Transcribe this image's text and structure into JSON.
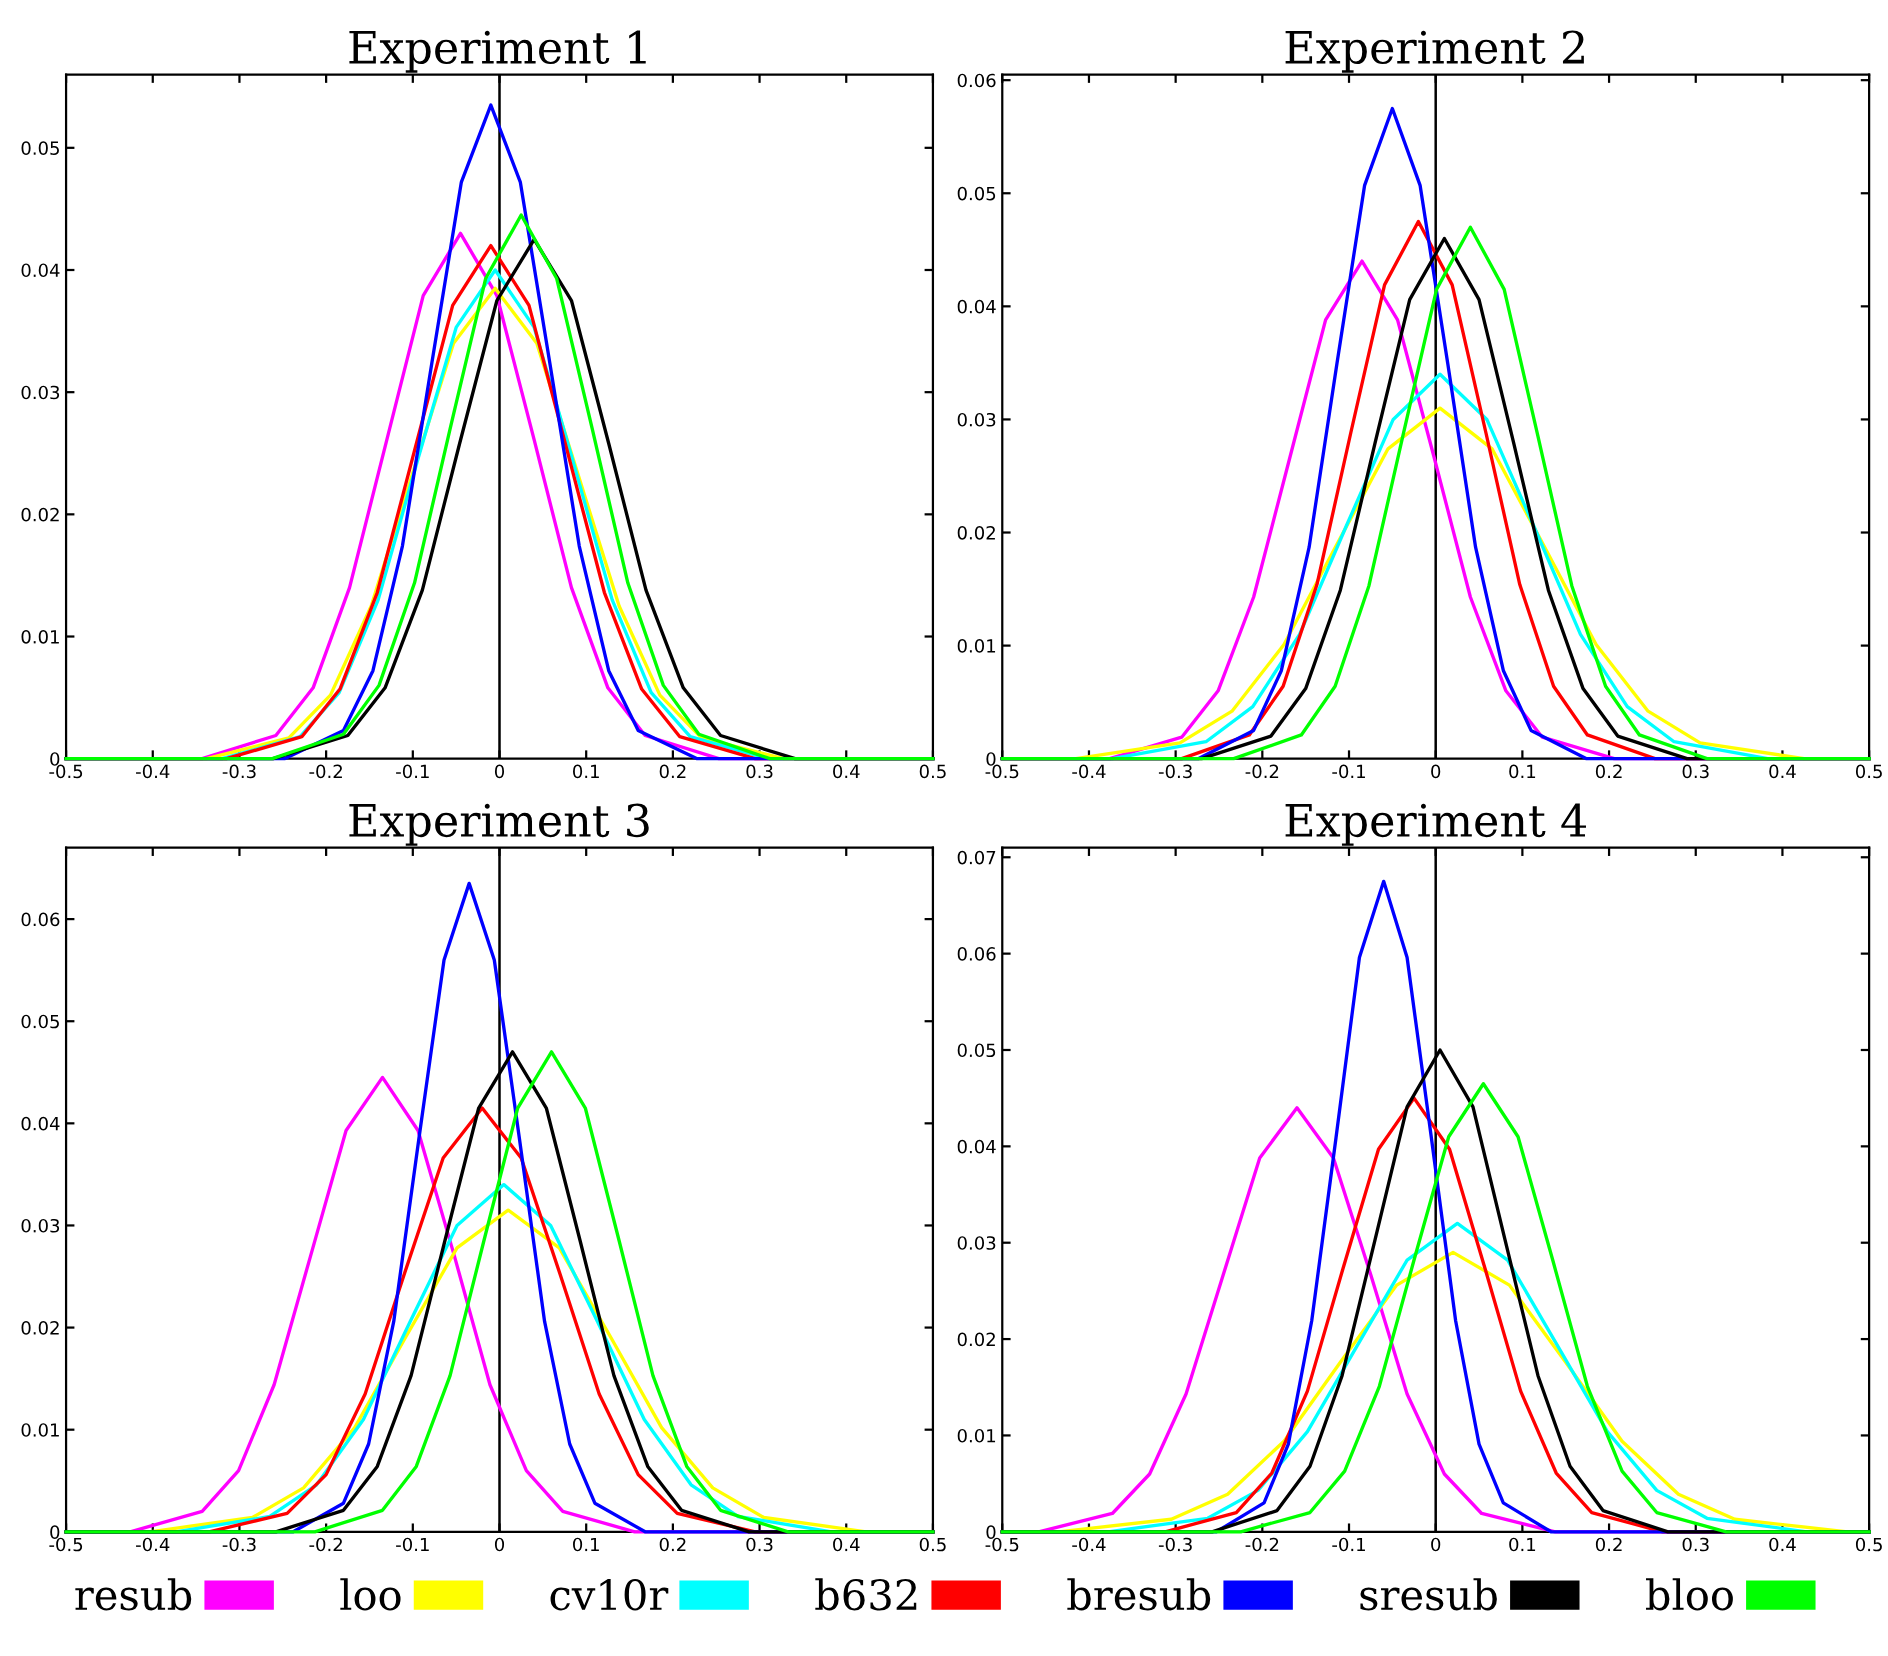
{
  "chart_data": [
    {
      "type": "line",
      "title": "Experiment 1",
      "xlim": [
        -0.5,
        0.5
      ],
      "xticks": [
        -0.5,
        -0.4,
        -0.3,
        -0.2,
        -0.1,
        0,
        0.1,
        0.2,
        0.3,
        0.4,
        0.5
      ],
      "ylim": [
        0,
        0.056
      ],
      "yticks": [
        0,
        0.01,
        0.02,
        0.03,
        0.04,
        0.05
      ],
      "grid": false,
      "legend": "bottom",
      "marker": "none",
      "line_style": "solid",
      "ref_lines": [
        {
          "axis": "x",
          "value": 0,
          "color": "#000000"
        }
      ],
      "series": [
        {
          "name": "resub",
          "color": "#ff00ff",
          "x": [
            -0.5,
            -0.343,
            -0.258,
            -0.215,
            -0.173,
            -0.13,
            -0.088,
            -0.045,
            -0.003,
            0.04,
            0.083,
            0.125,
            0.168,
            0.253,
            0.5
          ],
          "values": [
            0,
            0,
            0.0019,
            0.0058,
            0.014,
            0.0261,
            0.0379,
            0.043,
            0.0379,
            0.0261,
            0.014,
            0.0058,
            0.0019,
            0,
            0
          ]
        },
        {
          "name": "loo",
          "color": "#ffff00",
          "x": [
            -0.5,
            -0.338,
            -0.243,
            -0.195,
            -0.148,
            -0.1,
            -0.053,
            -0.005,
            0.043,
            0.09,
            0.138,
            0.185,
            0.233,
            0.328,
            0.5
          ],
          "values": [
            0,
            0,
            0.0017,
            0.0052,
            0.0125,
            0.0234,
            0.034,
            0.0385,
            0.034,
            0.0234,
            0.0125,
            0.0052,
            0.0017,
            0,
            0
          ]
        },
        {
          "name": "cv10r",
          "color": "#00ffff",
          "x": [
            -0.5,
            -0.32,
            -0.23,
            -0.185,
            -0.14,
            -0.095,
            -0.05,
            -0.005,
            0.04,
            0.085,
            0.13,
            0.175,
            0.22,
            0.31,
            0.5
          ],
          "values": [
            0,
            0,
            0.0018,
            0.0054,
            0.013,
            0.0243,
            0.0353,
            0.04,
            0.0353,
            0.0243,
            0.013,
            0.0054,
            0.0018,
            0,
            0
          ]
        },
        {
          "name": "b632",
          "color": "#ff0000",
          "x": [
            -0.5,
            -0.315,
            -0.228,
            -0.184,
            -0.141,
            -0.097,
            -0.054,
            -0.01,
            0.034,
            0.077,
            0.121,
            0.164,
            0.208,
            0.295,
            0.5
          ],
          "values": [
            0,
            0,
            0.0018,
            0.0057,
            0.0136,
            0.0255,
            0.0371,
            0.042,
            0.0371,
            0.0255,
            0.0136,
            0.0057,
            0.0018,
            0,
            0
          ]
        },
        {
          "name": "bresub",
          "color": "#0000ff",
          "x": [
            -0.5,
            -0.248,
            -0.18,
            -0.146,
            -0.112,
            -0.078,
            -0.044,
            -0.01,
            0.024,
            0.058,
            0.092,
            0.126,
            0.16,
            0.228,
            0.5
          ],
          "values": [
            0,
            0,
            0.0023,
            0.0072,
            0.0174,
            0.0324,
            0.0472,
            0.0535,
            0.0472,
            0.0324,
            0.0174,
            0.0072,
            0.0023,
            0,
            0
          ]
        },
        {
          "name": "sresub",
          "color": "#000000",
          "x": [
            -0.5,
            -0.261,
            -0.175,
            -0.132,
            -0.089,
            -0.046,
            -0.003,
            0.04,
            0.083,
            0.126,
            0.169,
            0.212,
            0.255,
            0.341,
            0.5
          ],
          "values": [
            0,
            0,
            0.0019,
            0.0058,
            0.0138,
            0.0258,
            0.0375,
            0.0425,
            0.0375,
            0.0258,
            0.0138,
            0.0058,
            0.0019,
            0,
            0
          ]
        },
        {
          "name": "bloo",
          "color": "#00ff00",
          "x": [
            -0.5,
            -0.262,
            -0.18,
            -0.139,
            -0.098,
            -0.057,
            -0.016,
            0.025,
            0.066,
            0.107,
            0.148,
            0.189,
            0.23,
            0.312,
            0.5
          ],
          "values": [
            0,
            0,
            0.002,
            0.006,
            0.0144,
            0.027,
            0.0393,
            0.0445,
            0.0393,
            0.027,
            0.0144,
            0.006,
            0.002,
            0,
            0
          ]
        }
      ]
    },
    {
      "type": "line",
      "title": "Experiment 2",
      "xlim": [
        -0.5,
        0.5
      ],
      "xticks": [
        -0.5,
        -0.4,
        -0.3,
        -0.2,
        -0.1,
        0,
        0.1,
        0.2,
        0.3,
        0.4,
        0.5
      ],
      "ylim": [
        0,
        0.0605
      ],
      "yticks": [
        0,
        0.01,
        0.02,
        0.03,
        0.04,
        0.05,
        0.06
      ],
      "grid": false,
      "marker": "none",
      "line_style": "solid",
      "ref_lines": [
        {
          "axis": "x",
          "value": 0,
          "color": "#000000"
        }
      ],
      "series": [
        {
          "color": "#ff00ff",
          "x": [
            -0.5,
            -0.376,
            -0.293,
            -0.251,
            -0.21,
            -0.168,
            -0.127,
            -0.085,
            -0.044,
            -0.002,
            0.04,
            0.081,
            0.123,
            0.206,
            0.5
          ],
          "values": [
            0,
            0,
            0.0019,
            0.006,
            0.0143,
            0.0267,
            0.0388,
            0.044,
            0.0388,
            0.0267,
            0.0143,
            0.006,
            0.0019,
            0,
            0
          ]
        },
        {
          "color": "#ffff00",
          "x": [
            -0.5,
            -0.415,
            -0.295,
            -0.235,
            -0.175,
            -0.115,
            -0.055,
            0.005,
            0.065,
            0.125,
            0.185,
            0.245,
            0.305,
            0.425,
            0.5
          ],
          "values": [
            0,
            0,
            0.0014,
            0.0042,
            0.0101,
            0.0188,
            0.0274,
            0.031,
            0.0274,
            0.0188,
            0.0101,
            0.0042,
            0.0014,
            0,
            0
          ]
        },
        {
          "color": "#00ffff",
          "x": [
            -0.5,
            -0.373,
            -0.265,
            -0.211,
            -0.157,
            -0.103,
            -0.049,
            0.005,
            0.059,
            0.113,
            0.167,
            0.221,
            0.275,
            0.383,
            0.5
          ],
          "values": [
            0,
            0,
            0.0015,
            0.0046,
            0.011,
            0.0206,
            0.03,
            0.034,
            0.03,
            0.0206,
            0.011,
            0.0046,
            0.0015,
            0,
            0
          ]
        },
        {
          "color": "#ff0000",
          "x": [
            -0.5,
            -0.293,
            -0.215,
            -0.176,
            -0.137,
            -0.098,
            -0.059,
            -0.02,
            0.019,
            0.058,
            0.097,
            0.136,
            0.175,
            0.253,
            0.5
          ],
          "values": [
            0,
            0,
            0.0021,
            0.0064,
            0.0154,
            0.0288,
            0.0419,
            0.0475,
            0.0419,
            0.0288,
            0.0154,
            0.0064,
            0.0021,
            0,
            0
          ]
        },
        {
          "color": "#0000ff",
          "x": [
            -0.5,
            -0.274,
            -0.21,
            -0.178,
            -0.146,
            -0.114,
            -0.082,
            -0.05,
            -0.018,
            0.014,
            0.046,
            0.078,
            0.11,
            0.174,
            0.5
          ],
          "values": [
            0,
            0,
            0.0025,
            0.0078,
            0.0187,
            0.0349,
            0.0507,
            0.0575,
            0.0507,
            0.0349,
            0.0187,
            0.0078,
            0.0025,
            0,
            0
          ]
        },
        {
          "color": "#000000",
          "x": [
            -0.5,
            -0.27,
            -0.19,
            -0.15,
            -0.11,
            -0.07,
            -0.03,
            0.01,
            0.05,
            0.09,
            0.13,
            0.17,
            0.21,
            0.29,
            0.5
          ],
          "values": [
            0,
            0,
            0.002,
            0.0062,
            0.0149,
            0.0279,
            0.0406,
            0.046,
            0.0406,
            0.0279,
            0.0149,
            0.0062,
            0.002,
            0,
            0
          ]
        },
        {
          "color": "#00ff00",
          "x": [
            -0.5,
            -0.233,
            -0.155,
            -0.116,
            -0.077,
            -0.038,
            0.001,
            0.04,
            0.079,
            0.118,
            0.157,
            0.196,
            0.235,
            0.313,
            0.5
          ],
          "values": [
            0,
            0,
            0.0021,
            0.0064,
            0.0153,
            0.0285,
            0.0415,
            0.047,
            0.0415,
            0.0285,
            0.0153,
            0.0064,
            0.0021,
            0,
            0
          ]
        }
      ]
    },
    {
      "type": "line",
      "title": "Experiment 3",
      "xlim": [
        -0.5,
        0.5
      ],
      "xticks": [
        -0.5,
        -0.4,
        -0.3,
        -0.2,
        -0.1,
        0,
        0.1,
        0.2,
        0.3,
        0.4,
        0.5
      ],
      "ylim": [
        0,
        0.067
      ],
      "yticks": [
        0,
        0.01,
        0.02,
        0.03,
        0.04,
        0.05,
        0.06
      ],
      "grid": false,
      "marker": "none",
      "line_style": "solid",
      "ref_lines": [
        {
          "axis": "x",
          "value": 0,
          "color": "#000000"
        }
      ],
      "series": [
        {
          "color": "#ff00ff",
          "x": [
            -0.5,
            -0.426,
            -0.343,
            -0.301,
            -0.26,
            -0.218,
            -0.177,
            -0.135,
            -0.094,
            -0.052,
            -0.011,
            0.031,
            0.073,
            0.156,
            0.5
          ],
          "values": [
            0,
            0,
            0.002,
            0.006,
            0.0144,
            0.027,
            0.0393,
            0.0445,
            0.0393,
            0.027,
            0.0144,
            0.006,
            0.002,
            0,
            0
          ]
        },
        {
          "color": "#ffff00",
          "x": [
            -0.5,
            -0.403,
            -0.285,
            -0.226,
            -0.167,
            -0.108,
            -0.049,
            0.01,
            0.069,
            0.128,
            0.187,
            0.246,
            0.305,
            0.423,
            0.5
          ],
          "values": [
            0,
            0,
            0.0014,
            0.0043,
            0.0102,
            0.0191,
            0.0278,
            0.0315,
            0.0278,
            0.0191,
            0.0102,
            0.0043,
            0.0014,
            0,
            0
          ]
        },
        {
          "color": "#00ffff",
          "x": [
            -0.5,
            -0.373,
            -0.265,
            -0.211,
            -0.157,
            -0.103,
            -0.049,
            0.005,
            0.059,
            0.113,
            0.167,
            0.221,
            0.275,
            0.383,
            0.5
          ],
          "values": [
            0,
            0,
            0.0015,
            0.0046,
            0.011,
            0.0206,
            0.03,
            0.034,
            0.03,
            0.0206,
            0.011,
            0.0046,
            0.0015,
            0,
            0
          ]
        },
        {
          "color": "#ff0000",
          "x": [
            -0.5,
            -0.335,
            -0.245,
            -0.2,
            -0.155,
            -0.11,
            -0.065,
            -0.02,
            0.025,
            0.07,
            0.115,
            0.16,
            0.205,
            0.295,
            0.5
          ],
          "values": [
            0,
            0,
            0.0018,
            0.0056,
            0.0135,
            0.0252,
            0.0366,
            0.0415,
            0.0366,
            0.0252,
            0.0135,
            0.0056,
            0.0018,
            0,
            0
          ]
        },
        {
          "color": "#0000ff",
          "x": [
            -0.5,
            -0.238,
            -0.18,
            -0.151,
            -0.122,
            -0.093,
            -0.064,
            -0.035,
            -0.006,
            0.023,
            0.052,
            0.081,
            0.11,
            0.168,
            0.5
          ],
          "values": [
            0,
            0,
            0.0028,
            0.0086,
            0.0206,
            0.0385,
            0.056,
            0.0635,
            0.056,
            0.0385,
            0.0206,
            0.0086,
            0.0028,
            0,
            0
          ]
        },
        {
          "color": "#000000",
          "x": [
            -0.5,
            -0.258,
            -0.18,
            -0.141,
            -0.102,
            -0.063,
            -0.024,
            0.015,
            0.054,
            0.093,
            0.132,
            0.171,
            0.21,
            0.288,
            0.5
          ],
          "values": [
            0,
            0,
            0.0021,
            0.0064,
            0.0153,
            0.0285,
            0.0415,
            0.047,
            0.0415,
            0.0285,
            0.0153,
            0.0064,
            0.0021,
            0,
            0
          ]
        },
        {
          "color": "#00ff00",
          "x": [
            -0.5,
            -0.213,
            -0.135,
            -0.096,
            -0.057,
            -0.018,
            0.021,
            0.06,
            0.099,
            0.138,
            0.177,
            0.216,
            0.255,
            0.333,
            0.5
          ],
          "values": [
            0,
            0,
            0.0021,
            0.0064,
            0.0153,
            0.0285,
            0.0415,
            0.047,
            0.0415,
            0.0285,
            0.0153,
            0.0064,
            0.0021,
            0,
            0
          ]
        }
      ]
    },
    {
      "type": "line",
      "title": "Experiment 4",
      "xlim": [
        -0.5,
        0.5
      ],
      "xticks": [
        -0.5,
        -0.4,
        -0.3,
        -0.2,
        -0.1,
        0,
        0.1,
        0.2,
        0.3,
        0.4,
        0.5
      ],
      "ylim": [
        0,
        0.071
      ],
      "yticks": [
        0,
        0.01,
        0.02,
        0.03,
        0.04,
        0.05,
        0.06,
        0.07
      ],
      "grid": false,
      "marker": "none",
      "line_style": "solid",
      "ref_lines": [
        {
          "axis": "x",
          "value": 0,
          "color": "#000000"
        }
      ],
      "series": [
        {
          "color": "#ff00ff",
          "x": [
            -0.5,
            -0.458,
            -0.373,
            -0.33,
            -0.288,
            -0.245,
            -0.203,
            -0.16,
            -0.118,
            -0.075,
            -0.033,
            0.01,
            0.053,
            0.138,
            0.5
          ],
          "values": [
            0,
            0,
            0.0019,
            0.006,
            0.0143,
            0.0267,
            0.0388,
            0.044,
            0.0388,
            0.0267,
            0.0143,
            0.006,
            0.0019,
            0,
            0
          ]
        },
        {
          "color": "#ffff00",
          "x": [
            -0.5,
            -0.435,
            -0.305,
            -0.24,
            -0.175,
            -0.11,
            -0.045,
            0.02,
            0.085,
            0.15,
            0.215,
            0.28,
            0.345,
            0.475,
            0.5
          ],
          "values": [
            0,
            0,
            0.0013,
            0.0039,
            0.0094,
            0.0176,
            0.0256,
            0.029,
            0.0256,
            0.0176,
            0.0094,
            0.0039,
            0.0013,
            0,
            0
          ]
        },
        {
          "color": "#00ffff",
          "x": [
            -0.5,
            -0.378,
            -0.263,
            -0.205,
            -0.148,
            -0.09,
            -0.033,
            0.025,
            0.083,
            0.14,
            0.198,
            0.255,
            0.313,
            0.428,
            0.5
          ],
          "values": [
            0,
            0,
            0.0014,
            0.0043,
            0.0104,
            0.0194,
            0.0282,
            0.032,
            0.0282,
            0.0194,
            0.0104,
            0.0043,
            0.0014,
            0,
            0
          ]
        },
        {
          "color": "#ff0000",
          "x": [
            -0.5,
            -0.312,
            -0.23,
            -0.189,
            -0.148,
            -0.107,
            -0.066,
            -0.025,
            0.016,
            0.057,
            0.098,
            0.139,
            0.18,
            0.262,
            0.5
          ],
          "values": [
            0,
            0,
            0.002,
            0.0061,
            0.0146,
            0.0273,
            0.0397,
            0.045,
            0.0397,
            0.0273,
            0.0146,
            0.0061,
            0.002,
            0,
            0
          ]
        },
        {
          "color": "#0000ff",
          "x": [
            -0.5,
            -0.253,
            -0.198,
            -0.17,
            -0.143,
            -0.115,
            -0.088,
            -0.06,
            -0.033,
            -0.005,
            0.023,
            0.05,
            0.078,
            0.133,
            0.5
          ],
          "values": [
            0,
            0,
            0.003,
            0.0091,
            0.0219,
            0.0409,
            0.0596,
            0.0675,
            0.0596,
            0.0409,
            0.0219,
            0.0091,
            0.003,
            0,
            0
          ]
        },
        {
          "color": "#000000",
          "x": [
            -0.5,
            -0.258,
            -0.183,
            -0.145,
            -0.108,
            -0.07,
            -0.033,
            0.005,
            0.043,
            0.08,
            0.118,
            0.155,
            0.193,
            0.268,
            0.5
          ],
          "values": [
            0,
            0,
            0.0022,
            0.0068,
            0.0162,
            0.0303,
            0.0441,
            0.05,
            0.0441,
            0.0303,
            0.0162,
            0.0068,
            0.0022,
            0,
            0
          ]
        },
        {
          "color": "#00ff00",
          "x": [
            -0.5,
            -0.225,
            -0.145,
            -0.105,
            -0.065,
            -0.025,
            0.015,
            0.055,
            0.095,
            0.135,
            0.175,
            0.215,
            0.255,
            0.335,
            0.5
          ],
          "values": [
            0,
            0,
            0.002,
            0.0063,
            0.0151,
            0.0282,
            0.041,
            0.0465,
            0.041,
            0.0282,
            0.0151,
            0.0063,
            0.002,
            0,
            0
          ]
        }
      ]
    }
  ]
}
